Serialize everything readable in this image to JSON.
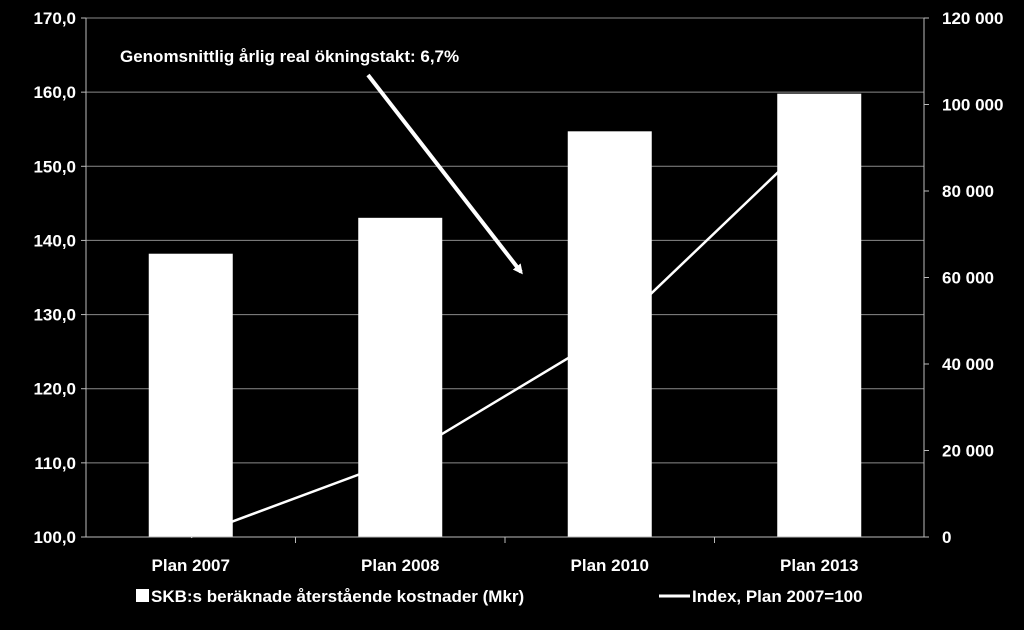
{
  "chart_data": {
    "type": "bar",
    "background": "#000000",
    "foreground": "#ffffff",
    "categories": [
      "Plan 2007",
      "Plan 2008",
      "Plan 2010",
      "Plan 2013"
    ],
    "series": [
      {
        "name": "SKB:s beräknade återstående kostnader (Mkr)",
        "kind": "bar",
        "axis": "right",
        "values": [
          65500,
          73800,
          93800,
          102500
        ]
      },
      {
        "name": "Index, Plan 2007=100",
        "kind": "line",
        "axis": "left",
        "values": [
          100.0,
          110.5,
          127.5,
          154.5
        ]
      }
    ],
    "y_left": {
      "min": 100,
      "max": 170,
      "ticks": [
        100,
        110,
        120,
        130,
        140,
        150,
        160,
        170
      ],
      "tick_labels": [
        "100,0",
        "110,0",
        "120,0",
        "130,0",
        "140,0",
        "150,0",
        "160,0",
        "170,0"
      ]
    },
    "y_right": {
      "min": 0,
      "max": 120000,
      "ticks": [
        0,
        20000,
        40000,
        60000,
        80000,
        100000,
        120000
      ],
      "tick_labels": [
        "0",
        "20 000",
        "40 000",
        "60 000",
        "80 000",
        "100 000",
        "120 000"
      ]
    },
    "grid": true,
    "legend_position": "bottom",
    "annotation": {
      "text": "Genomsnittlig årlig real ökningstakt: 6,7%",
      "arrow_target_category": "Plan 2010",
      "arrow_target_index_value": 137
    }
  }
}
